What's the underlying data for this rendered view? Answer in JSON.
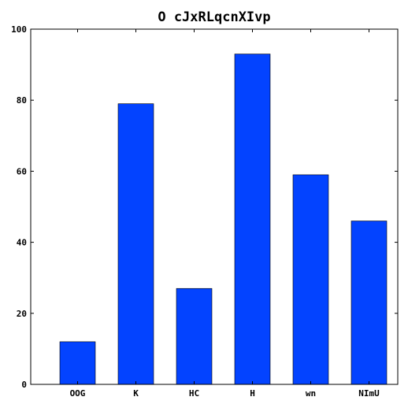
{
  "chart_data": {
    "type": "bar",
    "title": "O cJxRLqcnXIvp",
    "xlabel": "",
    "ylabel": "",
    "categories": [
      "OOG",
      "K",
      "HC",
      "H",
      "wn",
      "NImU"
    ],
    "values": [
      12,
      79,
      27,
      93,
      59,
      46
    ],
    "ylim": [
      0,
      100
    ],
    "yticks": [
      0,
      20,
      40,
      60,
      80,
      100
    ],
    "bar_color": "#0343ff",
    "grid": false,
    "legend": "none"
  }
}
